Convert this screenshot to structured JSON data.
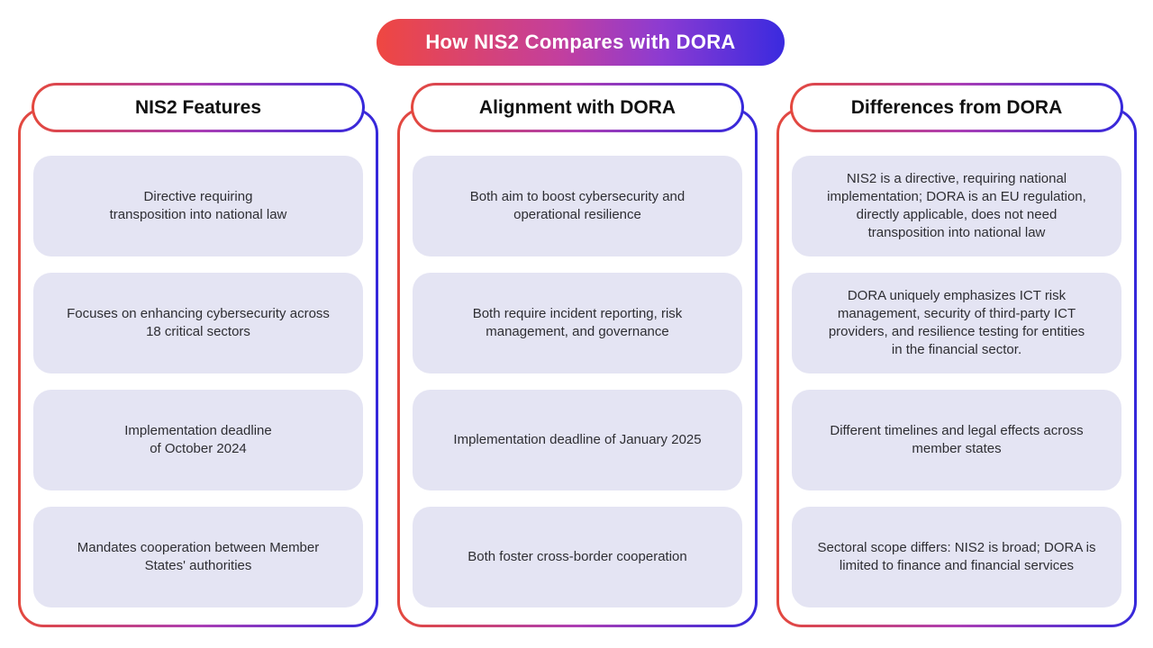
{
  "title": "How NIS2 Compares with DORA",
  "colors": {
    "gradient_red": "#e4483d",
    "gradient_purple": "#ac3eb4",
    "gradient_blue": "#3528db",
    "card_background": "#e4e4f3",
    "card_text": "#2e2e33",
    "banner_text": "#ffffff",
    "page_background": "#ffffff"
  },
  "columns": [
    {
      "header": "NIS2 Features",
      "cards": [
        "Directive requiring\ntransposition into national law",
        "Focuses on enhancing cybersecurity across\n18 critical sectors",
        "Implementation deadline\nof October 2024",
        "Mandates cooperation between Member\nStates' authorities"
      ]
    },
    {
      "header": "Alignment with DORA",
      "cards": [
        "Both aim to boost cybersecurity and\noperational resilience",
        "Both require incident reporting, risk\nmanagement, and governance",
        "Implementation deadline of January 2025",
        "Both foster cross-border cooperation"
      ]
    },
    {
      "header": "Differences from DORA",
      "cards": [
        "NIS2 is a directive, requiring national\nimplementation; DORA is an EU regulation,\ndirectly applicable, does not need\ntransposition into national law",
        "DORA uniquely emphasizes ICT risk\nmanagement, security of third-party ICT\nproviders, and resilience testing for entities\nin the financial sector.",
        "Different timelines and legal effects across\nmember states",
        "Sectoral scope differs: NIS2 is broad; DORA is\nlimited to finance and financial services"
      ]
    }
  ]
}
